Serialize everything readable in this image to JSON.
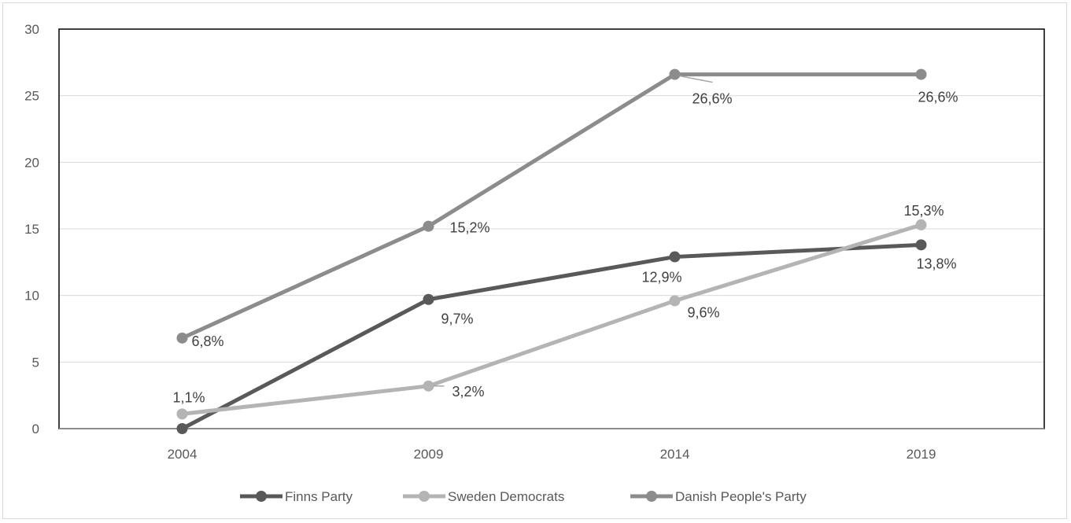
{
  "chart_data": {
    "type": "line",
    "title": "",
    "xlabel": "",
    "ylabel": "",
    "categories": [
      "2004",
      "2009",
      "2014",
      "2019"
    ],
    "ylim": [
      0,
      30
    ],
    "yticks": [
      "0",
      "5",
      "10",
      "15",
      "20",
      "25",
      "30"
    ],
    "grid": true,
    "legend_position": "bottom",
    "series": [
      {
        "name": "Finns Party",
        "color": "#595959",
        "values": [
          0,
          9.7,
          12.9,
          13.8
        ],
        "labels": [
          "",
          "9,7%",
          "12,9%",
          "13,8%"
        ]
      },
      {
        "name": "Sweden Democrats",
        "color": "#b4b4b4",
        "values": [
          1.1,
          3.2,
          9.6,
          15.3
        ],
        "labels": [
          "1,1%",
          "3,2%",
          "9,6%",
          "15,3%"
        ]
      },
      {
        "name": "Danish People's Party",
        "color": "#8c8c8c",
        "values": [
          6.8,
          15.2,
          26.6,
          26.6
        ],
        "labels": [
          "6,8%",
          "15,2%",
          "26,6%",
          "26,6%"
        ]
      }
    ]
  }
}
